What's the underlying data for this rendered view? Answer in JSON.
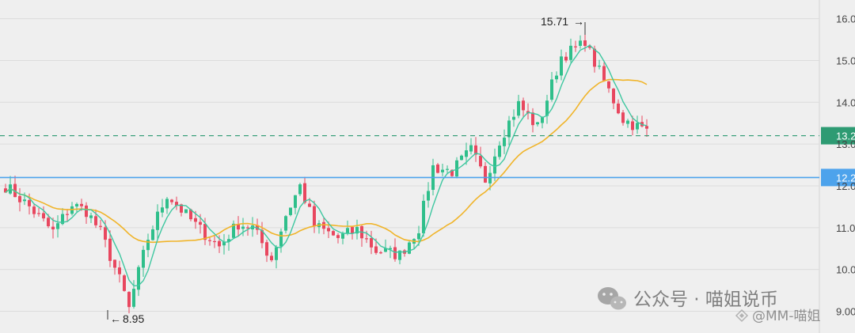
{
  "chart_data": {
    "type": "candlestick",
    "y_ticks": [
      "16.00",
      "15.00",
      "14.00",
      "13.00",
      "12.00",
      "11.00",
      "10.00",
      "9.00"
    ],
    "y_range": [
      8.82,
      16.22
    ],
    "candle_count": 136,
    "annotations": {
      "high": "15.71",
      "low": "8.95"
    },
    "price_lines": [
      {
        "value": 13.2,
        "label": "13.2",
        "style": "dashed",
        "color": "#2e9b73"
      },
      {
        "value": 12.2,
        "label": "12.2",
        "style": "solid",
        "color": "#4da3ec"
      }
    ],
    "close_anchors": [
      [
        0,
        12.0
      ],
      [
        5,
        11.5
      ],
      [
        10,
        10.9
      ],
      [
        14,
        11.55
      ],
      [
        17,
        11.4
      ],
      [
        20,
        10.9
      ],
      [
        24,
        9.75
      ],
      [
        26,
        9.1
      ],
      [
        30,
        10.75
      ],
      [
        34,
        11.8
      ],
      [
        38,
        11.3
      ],
      [
        41,
        10.95
      ],
      [
        45,
        10.55
      ],
      [
        49,
        11.1
      ],
      [
        52,
        11.0
      ],
      [
        56,
        10.25
      ],
      [
        59,
        11.3
      ],
      [
        62,
        12.0
      ],
      [
        65,
        11.05
      ],
      [
        70,
        10.75
      ],
      [
        74,
        10.95
      ],
      [
        78,
        10.45
      ],
      [
        83,
        10.35
      ],
      [
        87,
        11.0
      ],
      [
        90,
        12.45
      ],
      [
        94,
        12.35
      ],
      [
        98,
        12.85
      ],
      [
        101,
        12.15
      ],
      [
        104,
        13.1
      ],
      [
        108,
        13.95
      ],
      [
        112,
        13.4
      ],
      [
        117,
        15.1
      ],
      [
        122,
        15.4
      ],
      [
        126,
        14.5
      ],
      [
        130,
        13.6
      ],
      [
        135,
        13.3
      ]
    ],
    "series": [
      {
        "name": "",
        "color": "#3ec7a0",
        "kind": "moving-average-fast"
      },
      {
        "name": "",
        "color": "#f0b429",
        "kind": "moving-average-slow"
      }
    ],
    "colors": {
      "up": "#2fbf8b",
      "down": "#e8475f",
      "grid": "#dcdcdc",
      "background": "#efefef"
    }
  },
  "watermark": {
    "main": "公众号 · 喵姐说币",
    "secondary": "@MM-喵姐"
  }
}
